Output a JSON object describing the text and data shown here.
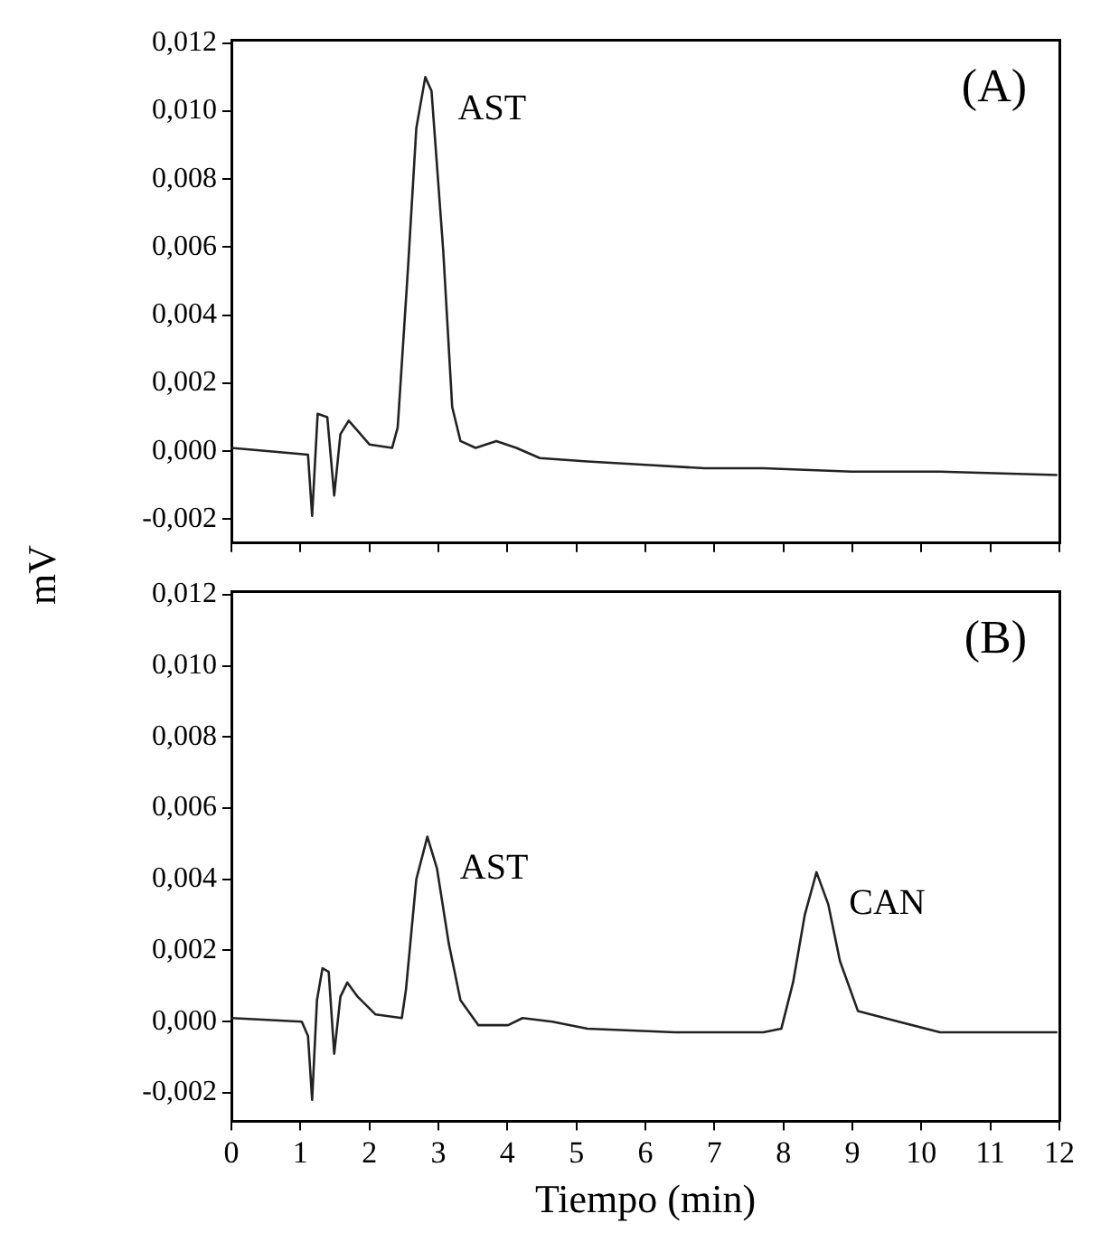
{
  "chart_data": [
    {
      "type": "line",
      "ylabel": "mV",
      "tick_labels": "y",
      "xlim": [
        0,
        12
      ],
      "xticks": [
        0,
        1,
        2,
        3,
        4,
        5,
        6,
        7,
        8,
        9,
        10,
        11,
        12
      ],
      "ylim": [
        -0.0027,
        0.0121
      ],
      "yticks": [
        {
          "value": -0.002,
          "label": "-0,002"
        },
        {
          "value": 0,
          "label": "0,000"
        },
        {
          "value": 0.002,
          "label": "0,002"
        },
        {
          "value": 0.004,
          "label": "0,004"
        },
        {
          "value": 0.006,
          "label": "0,006"
        },
        {
          "value": 0.008,
          "label": "0,008"
        },
        {
          "value": 0.01,
          "label": "0,010"
        },
        {
          "value": 0.012,
          "label": "0,012"
        }
      ],
      "annotations": [
        "(A)",
        {
          "text": "AST",
          "x": 2.81,
          "y": 0.011
        }
      ],
      "series": [
        {
          "color": "#222222",
          "x": [
            0,
            1.11,
            1.17,
            1.25,
            1.39,
            1.49,
            1.58,
            1.7,
            1.83,
            2.0,
            2.33,
            2.41,
            2.56,
            2.68,
            2.81,
            2.9,
            3.07,
            3.2,
            3.32,
            3.54,
            3.84,
            4.13,
            4.47,
            5.16,
            6.01,
            6.86,
            7.71,
            8.99,
            10.27,
            11.97
          ],
          "values": [
            0.0001,
            -0.0001,
            -0.0019,
            0.0011,
            0.001,
            -0.0013,
            0.0005,
            0.0009,
            0.0006,
            0.0002,
            0.0001,
            0.0007,
            0.0054,
            0.0095,
            0.011,
            0.0106,
            0.0059,
            0.0013,
            0.0003,
            0.0001,
            0.0003,
            0.0001,
            -0.0002,
            -0.0003,
            -0.0004,
            -0.0005,
            -0.0005,
            -0.0006,
            -0.0006,
            -0.0007
          ]
        }
      ]
    },
    {
      "type": "line",
      "xlabel": "Tiempo (min)",
      "xlim": [
        0,
        12
      ],
      "xticks": [
        0,
        1,
        2,
        3,
        4,
        5,
        6,
        7,
        8,
        9,
        10,
        11,
        12
      ],
      "ylim": [
        -0.0028,
        0.0121
      ],
      "yticks": [
        {
          "value": -0.002,
          "label": "-0,002"
        },
        {
          "value": 0,
          "label": "0,000"
        },
        {
          "value": 0.002,
          "label": "0,002"
        },
        {
          "value": 0.004,
          "label": "0,004"
        },
        {
          "value": 0.006,
          "label": "0,006"
        },
        {
          "value": 0.008,
          "label": "0,008"
        },
        {
          "value": 0.01,
          "label": "0,010"
        },
        {
          "value": 0.012,
          "label": "0,012"
        }
      ],
      "annotations": [
        "(B)",
        {
          "text": "AST",
          "x": 2.84,
          "y": 0.0052
        },
        {
          "text": "CAN",
          "x": 8.48,
          "y": 0.0042
        }
      ],
      "series": [
        {
          "color": "#222222",
          "x": [
            0,
            1.02,
            1.11,
            1.17,
            1.24,
            1.32,
            1.41,
            1.49,
            1.58,
            1.68,
            1.83,
            2.09,
            2.47,
            2.53,
            2.68,
            2.84,
            2.98,
            3.15,
            3.32,
            3.58,
            4.01,
            4.22,
            4.65,
            5.16,
            6.43,
            7.71,
            7.97,
            8.14,
            8.31,
            8.48,
            8.65,
            8.82,
            9.08,
            9.67,
            10.27,
            11.12,
            11.97
          ],
          "values": [
            0.0001,
            0,
            -0.0004,
            -0.0022,
            0.0006,
            0.0015,
            0.0014,
            -0.0009,
            0.0007,
            0.0011,
            0.0007,
            0.0002,
            0.0001,
            0.0009,
            0.004,
            0.0052,
            0.0043,
            0.0022,
            0.0006,
            -0.0001,
            -0.0001,
            0.0001,
            0,
            -0.0002,
            -0.0003,
            -0.0003,
            -0.0002,
            0.0011,
            0.003,
            0.0042,
            0.0033,
            0.0017,
            0.0003,
            0,
            -0.0003,
            -0.0003,
            -0.0003
          ]
        }
      ]
    }
  ]
}
